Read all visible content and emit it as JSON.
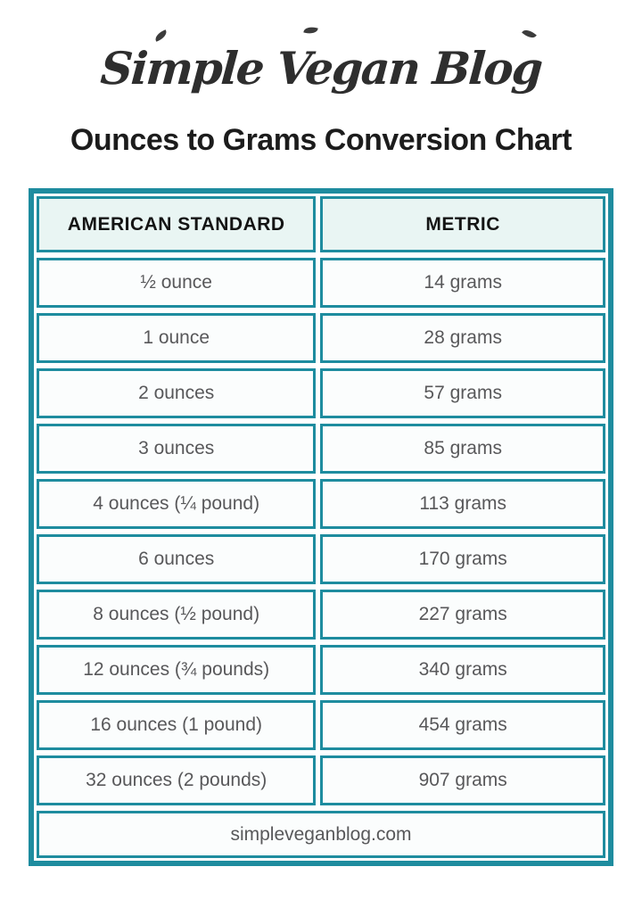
{
  "logo": {
    "text": "Simple Vegan Blog"
  },
  "title": "Ounces to Grams Conversion Chart",
  "table": {
    "headers": [
      "AMERICAN STANDARD",
      "METRIC"
    ],
    "rows": [
      {
        "standard": "½ ounce",
        "metric": "14 grams"
      },
      {
        "standard": "1 ounce",
        "metric": "28 grams"
      },
      {
        "standard": "2 ounces",
        "metric": "57 grams"
      },
      {
        "standard": "3 ounces",
        "metric": "85 grams"
      },
      {
        "standard": "4 ounces (¼ pound)",
        "metric": "113 grams"
      },
      {
        "standard": "6 ounces",
        "metric": "170 grams"
      },
      {
        "standard": "8 ounces (½ pound)",
        "metric": "227 grams"
      },
      {
        "standard": "12 ounces (¾ pounds)",
        "metric": "340 grams"
      },
      {
        "standard": "16 ounces (1 pound)",
        "metric": "454 grams"
      },
      {
        "standard": "32 ounces (2 pounds)",
        "metric": "907 grams"
      }
    ],
    "footer": "simpleveganblog.com"
  },
  "colors": {
    "teal": "#1e8c9f",
    "header_bg": "#e9f5f3",
    "cell_bg": "#fbfdfd",
    "text_gray": "#58585a",
    "title_color": "#1c1c1c"
  },
  "chart_data": {
    "type": "table",
    "title": "Ounces to Grams Conversion Chart",
    "columns": [
      "AMERICAN STANDARD",
      "METRIC"
    ],
    "rows": [
      [
        "½ ounce",
        "14 grams"
      ],
      [
        "1 ounce",
        "28 grams"
      ],
      [
        "2 ounces",
        "57 grams"
      ],
      [
        "3 ounces",
        "85 grams"
      ],
      [
        "4 ounces (¼ pound)",
        "113 grams"
      ],
      [
        "6 ounces",
        "170 grams"
      ],
      [
        "8 ounces (½ pound)",
        "227 grams"
      ],
      [
        "12 ounces (¾ pounds)",
        "340 grams"
      ],
      [
        "16 ounces (1 pound)",
        "454 grams"
      ],
      [
        "32 ounces (2 pounds)",
        "907 grams"
      ]
    ],
    "ounces": [
      0.5,
      1,
      2,
      3,
      4,
      6,
      8,
      12,
      16,
      32
    ],
    "grams": [
      14,
      28,
      57,
      85,
      113,
      170,
      227,
      340,
      454,
      907
    ],
    "footer": "simpleveganblog.com"
  }
}
